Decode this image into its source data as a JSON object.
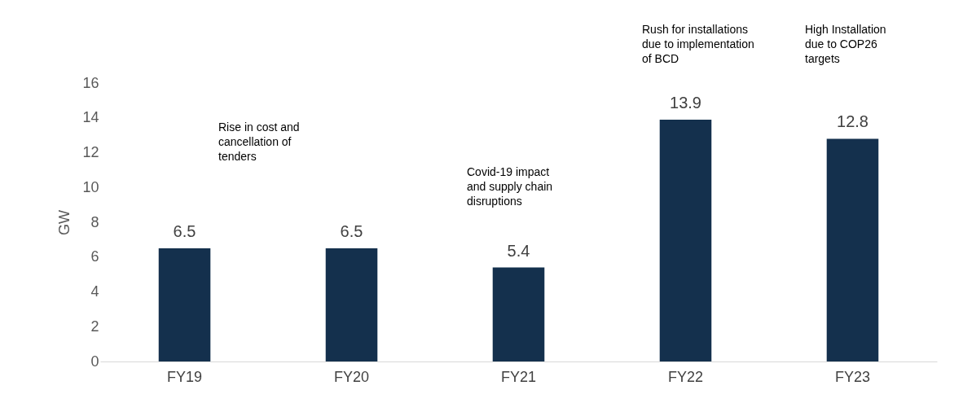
{
  "chart_data": {
    "type": "bar",
    "ylabel": "GW",
    "categories": [
      "FY19",
      "FY20",
      "FY21",
      "FY22",
      "FY23"
    ],
    "values": [
      6.5,
      6.5,
      5.4,
      13.9,
      12.8
    ],
    "color": "#14304d",
    "ylim": [
      0,
      16
    ],
    "yticks": [
      0,
      2,
      4,
      6,
      8,
      10,
      12,
      14,
      16
    ],
    "grid": false,
    "data_labels": true,
    "annotations": [
      "Rise in cost and\ncancellation of\ntenders",
      "Covid-19 impact\nand supply chain\ndisruptions",
      "Rush for installations\ndue to implementation\nof BCD",
      "High Installation\ndue to COP26\ntargets"
    ]
  }
}
